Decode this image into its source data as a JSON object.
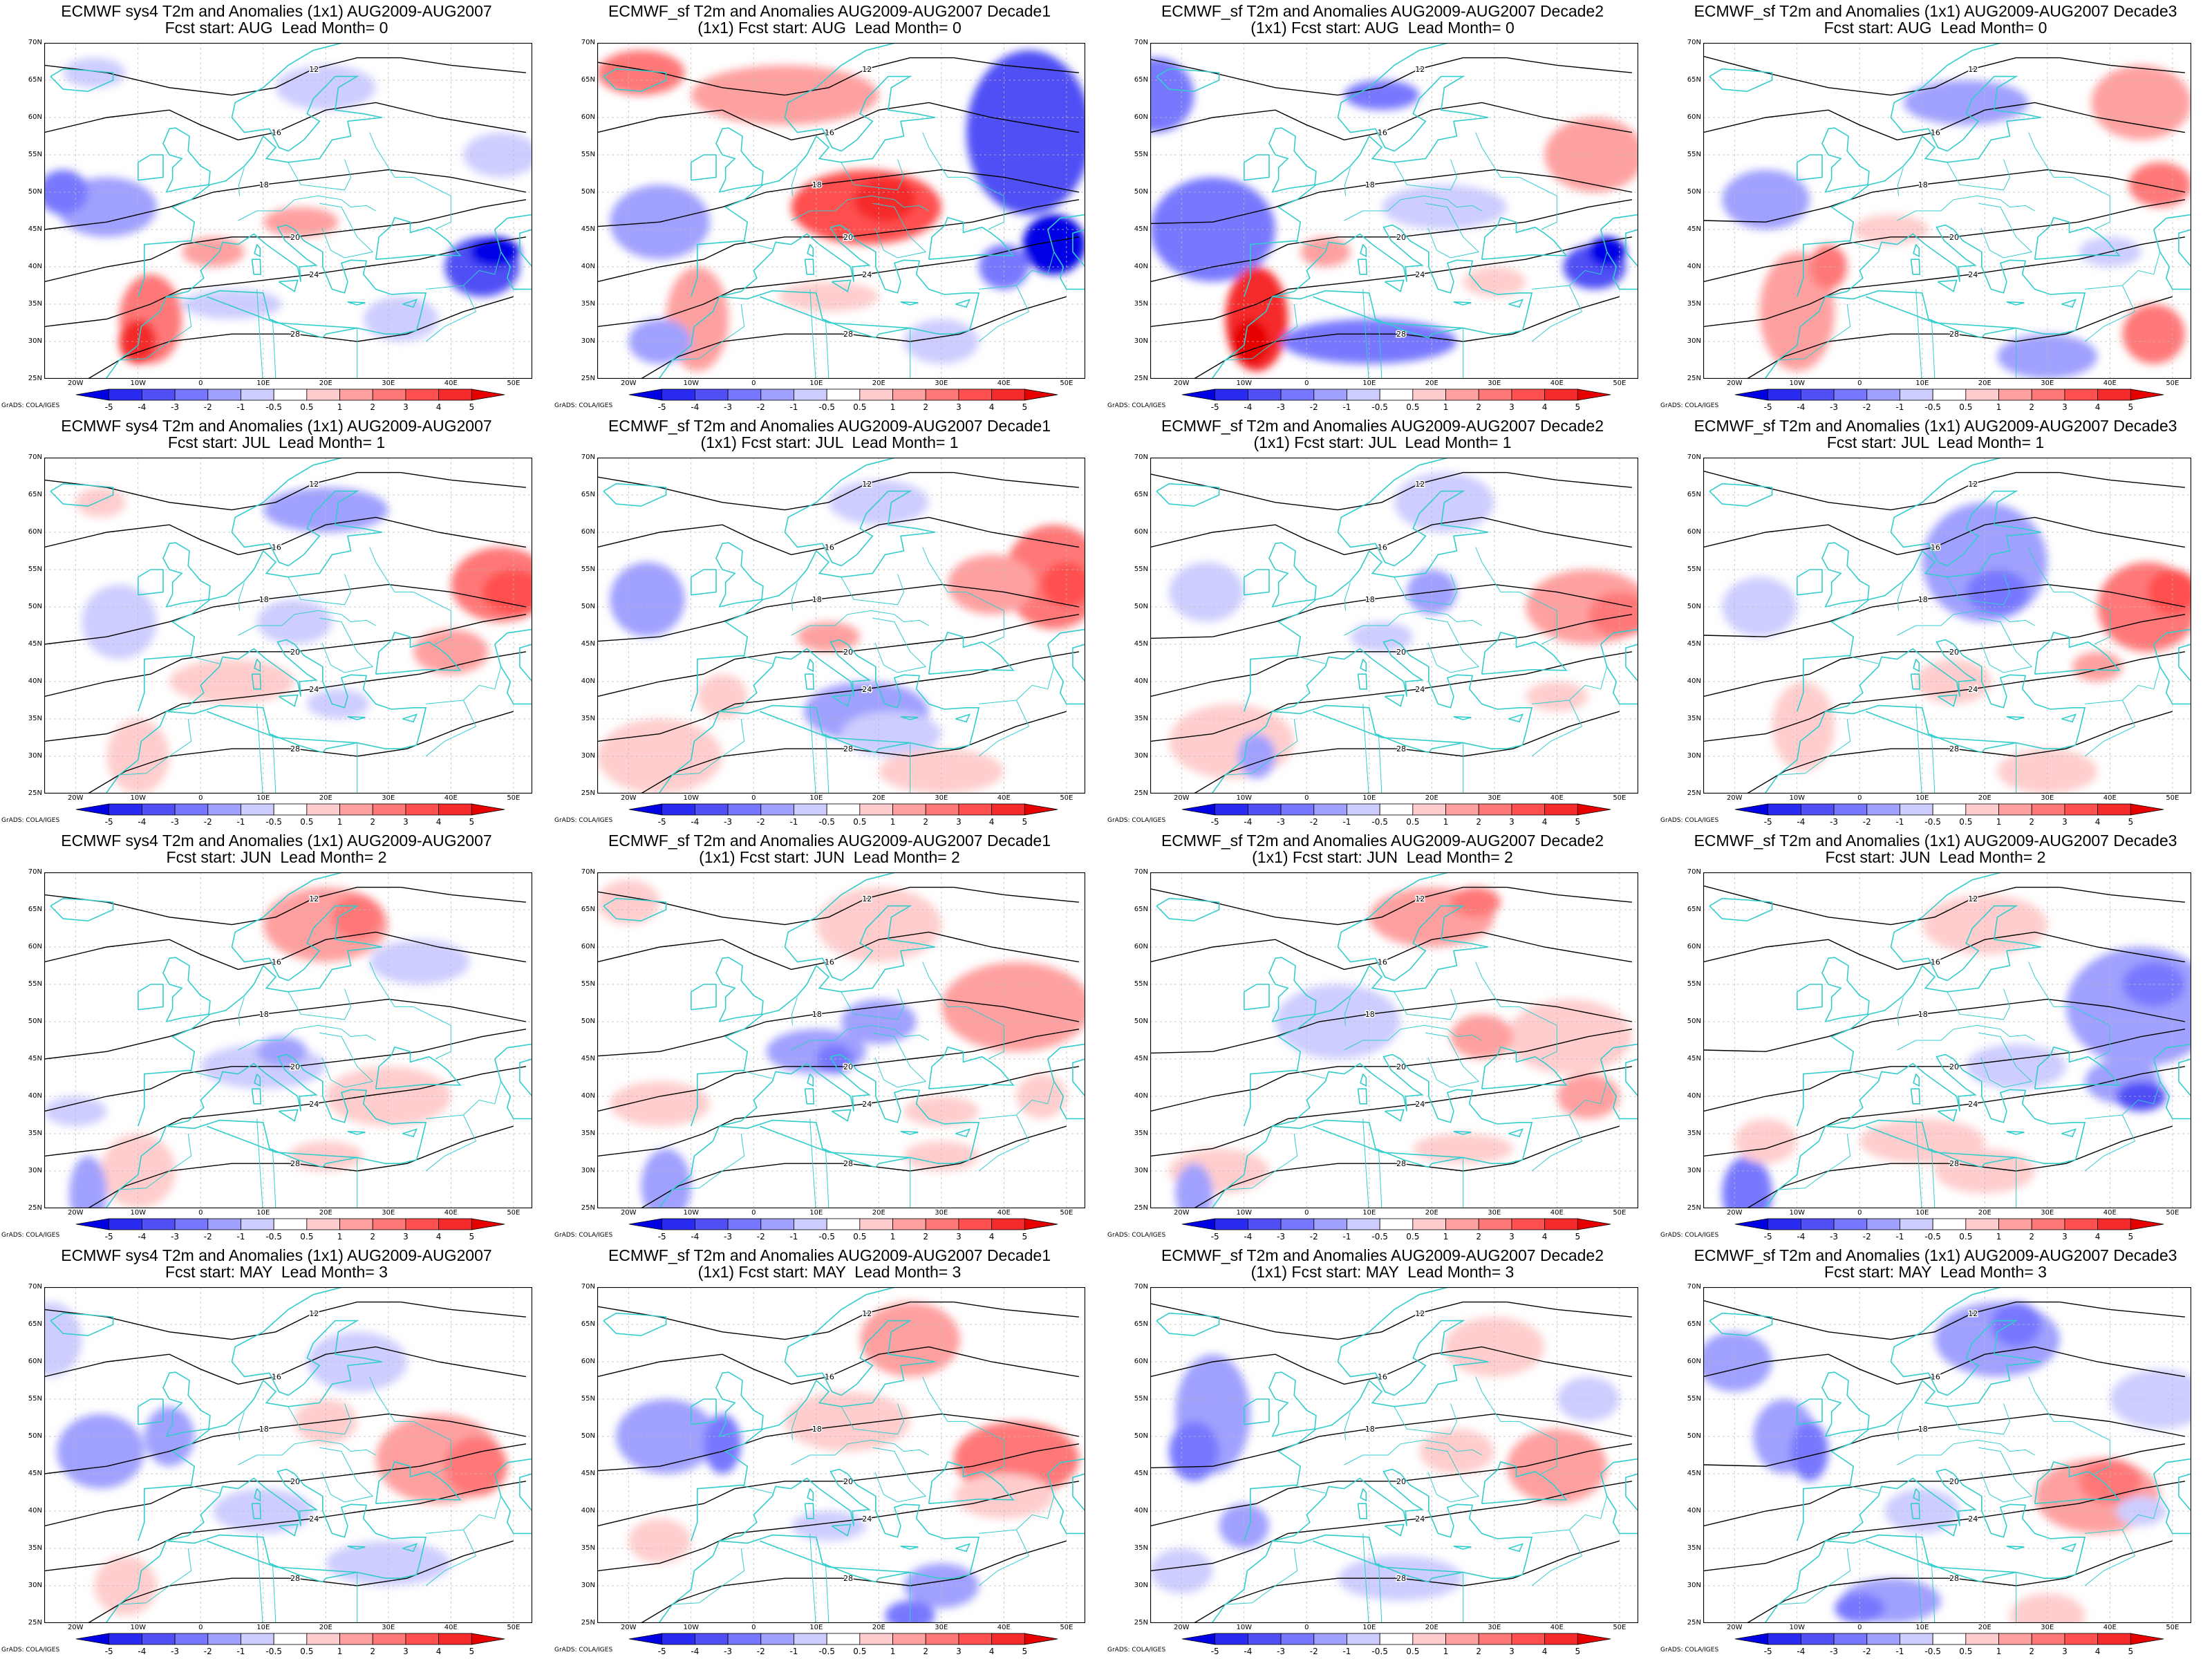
{
  "panels": [
    {
      "title": "ECMWF sys4 T2m and Anomalies (1x1) AUG2009-AUG2007",
      "subtitle": "Fcst start: AUG  Lead Month= 0"
    },
    {
      "title": "ECMWF_sf T2m and Anomalies AUG2009-AUG2007 Decade1",
      "subtitle": "(1x1) Fcst start: AUG  Lead Month= 0"
    },
    {
      "title": "ECMWF_sf T2m and Anomalies AUG2009-AUG2007 Decade2",
      "subtitle": "(1x1) Fcst start: AUG  Lead Month= 0"
    },
    {
      "title": "ECMWF_sf T2m and Anomalies (1x1) AUG2009-AUG2007 Decade3",
      "subtitle": "Fcst start: AUG  Lead Month= 0"
    },
    {
      "title": "ECMWF sys4 T2m and Anomalies (1x1) AUG2009-AUG2007",
      "subtitle": "Fcst start: JUL  Lead Month= 1"
    },
    {
      "title": "ECMWF_sf T2m and Anomalies AUG2009-AUG2007 Decade1",
      "subtitle": "(1x1) Fcst start: JUL  Lead Month= 1"
    },
    {
      "title": "ECMWF_sf T2m and Anomalies AUG2009-AUG2007 Decade2",
      "subtitle": "(1x1) Fcst start: JUL  Lead Month= 1"
    },
    {
      "title": "ECMWF_sf T2m and Anomalies (1x1) AUG2009-AUG2007 Decade3",
      "subtitle": "Fcst start: JUL  Lead Month= 1"
    },
    {
      "title": "ECMWF sys4 T2m and Anomalies (1x1) AUG2009-AUG2007",
      "subtitle": "Fcst start: JUN  Lead Month= 2"
    },
    {
      "title": "ECMWF_sf T2m and Anomalies AUG2009-AUG2007 Decade1",
      "subtitle": "(1x1) Fcst start: JUN  Lead Month= 2"
    },
    {
      "title": "ECMWF_sf T2m and Anomalies AUG2009-AUG2007 Decade2",
      "subtitle": "(1x1) Fcst start: JUN  Lead Month= 2"
    },
    {
      "title": "ECMWF_sf T2m and Anomalies (1x1) AUG2009-AUG2007 Decade3",
      "subtitle": "Fcst start: JUN  Lead Month= 2"
    },
    {
      "title": "ECMWF sys4 T2m and Anomalies (1x1) AUG2009-AUG2007",
      "subtitle": "Fcst start: MAY  Lead Month= 3"
    },
    {
      "title": "ECMWF_sf T2m and Anomalies AUG2009-AUG2007 Decade1",
      "subtitle": "(1x1) Fcst start: MAY  Lead Month= 3"
    },
    {
      "title": "ECMWF_sf T2m and Anomalies AUG2009-AUG2007 Decade2",
      "subtitle": "(1x1) Fcst start: MAY  Lead Month= 3"
    },
    {
      "title": "ECMWF_sf T2m and Anomalies (1x1) AUG2009-AUG2007 Decade3",
      "subtitle": "Fcst start: MAY  Lead Month= 3"
    }
  ],
  "lat_labels": [
    "70N",
    "65N",
    "60N",
    "55N",
    "50N",
    "45N",
    "40N",
    "35N",
    "30N",
    "25N"
  ],
  "lon_labels": [
    "20W",
    "10W",
    "0",
    "10E",
    "20E",
    "30E",
    "40E",
    "50E"
  ],
  "colorbar_labels": [
    "-5",
    "-4",
    "-3",
    "-2",
    "-1",
    "-0.5",
    "0.5",
    "1",
    "2",
    "3",
    "4",
    "5"
  ],
  "credit": "GrADS: COLA/IGES",
  "colors": {
    "coast": "#33cccc",
    "contour": "#000000",
    "cold": [
      "#0000e6",
      "#2a2af0",
      "#5050f5",
      "#7878ff",
      "#a0a0ff",
      "#cdcdff"
    ],
    "warm": [
      "#ffcdcd",
      "#ffa0a0",
      "#ff7878",
      "#ff5050",
      "#f52a2a",
      "#e60000"
    ]
  },
  "contour_labels": [
    "12",
    "16",
    "18",
    "20",
    "24",
    "28"
  ]
}
